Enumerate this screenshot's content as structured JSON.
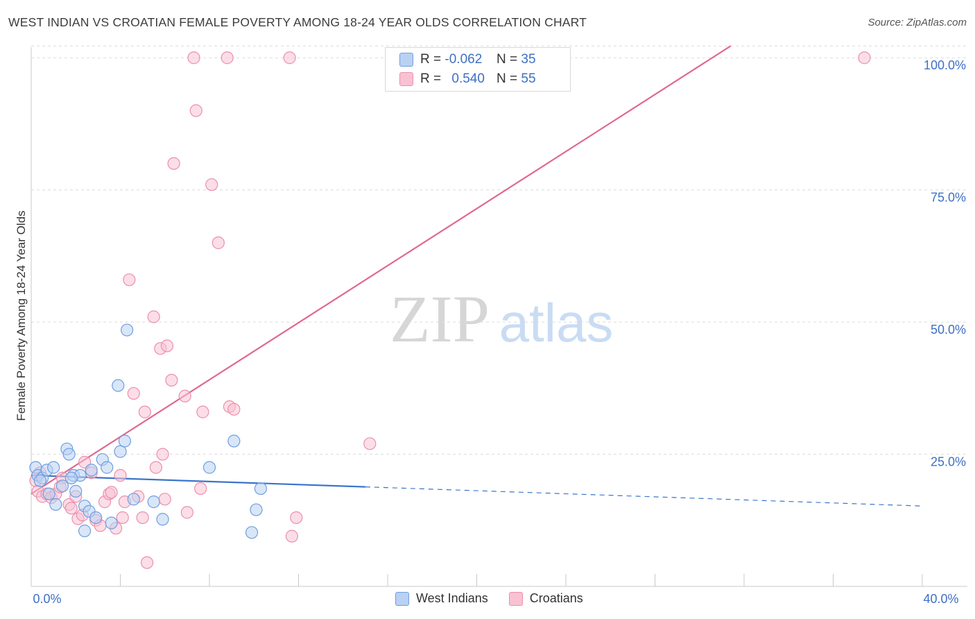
{
  "title": "WEST INDIAN VS CROATIAN FEMALE POVERTY AMONG 18-24 YEAR OLDS CORRELATION CHART",
  "source": "Source: ZipAtlas.com",
  "watermark": {
    "zip": "ZIP",
    "atlas": "atlas"
  },
  "legend": {
    "rows": [
      {
        "r_label": "R =",
        "r_value": "-0.062",
        "n_label": "N =",
        "n_value": "35"
      },
      {
        "r_label": "R =",
        "r_value": "0.540",
        "n_label": "N =",
        "n_value": "55"
      }
    ]
  },
  "colors": {
    "west_fill": "#b9d1f2",
    "west_stroke": "#6e9ee0",
    "west_line": "#3a74cc",
    "cro_fill": "#f8c2d3",
    "cro_stroke": "#ec8fac",
    "cro_line": "#e0688f",
    "axis_text": "#3d6fc4",
    "grid": "#dcdcdc"
  },
  "chart_data": {
    "type": "scatter",
    "title": "WEST INDIAN VS CROATIAN FEMALE POVERTY AMONG 18-24 YEAR OLDS CORRELATION CHART",
    "xlabel": "",
    "ylabel": "Female Poverty Among 18-24 Year Olds",
    "xlim": [
      0,
      40
    ],
    "ylim": [
      0,
      102
    ],
    "x_tick_labels": [
      "0.0%",
      "40.0%"
    ],
    "y_ticks": [
      25,
      50,
      75,
      100
    ],
    "y_tick_labels": [
      "25.0%",
      "50.0%",
      "75.0%",
      "100.0%"
    ],
    "series": [
      {
        "name": "West Indians",
        "r": -0.062,
        "n": 35,
        "trend": {
          "x0": 0,
          "y0": 21.0,
          "x1": 40,
          "y1": 15.2,
          "solid_until_x": 15
        },
        "points": [
          [
            0.2,
            22.5
          ],
          [
            0.3,
            21.0
          ],
          [
            0.5,
            20.5
          ],
          [
            0.7,
            22.0
          ],
          [
            0.8,
            17.5
          ],
          [
            1.0,
            22.5
          ],
          [
            1.1,
            15.5
          ],
          [
            1.4,
            19.0
          ],
          [
            1.6,
            26.0
          ],
          [
            1.7,
            25.0
          ],
          [
            1.9,
            21.0
          ],
          [
            2.0,
            18.0
          ],
          [
            2.2,
            21.0
          ],
          [
            2.4,
            10.5
          ],
          [
            2.4,
            15.2
          ],
          [
            2.6,
            14.2
          ],
          [
            2.7,
            22.0
          ],
          [
            2.9,
            13.0
          ],
          [
            3.2,
            24.0
          ],
          [
            3.4,
            22.5
          ],
          [
            3.6,
            12.0
          ],
          [
            3.9,
            38.0
          ],
          [
            4.0,
            25.5
          ],
          [
            4.2,
            27.5
          ],
          [
            4.3,
            48.5
          ],
          [
            4.6,
            16.5
          ],
          [
            5.5,
            16.0
          ],
          [
            5.9,
            12.7
          ],
          [
            8.0,
            22.5
          ],
          [
            9.1,
            27.5
          ],
          [
            9.9,
            10.2
          ],
          [
            10.1,
            14.5
          ],
          [
            10.3,
            18.5
          ],
          [
            0.4,
            20.0
          ],
          [
            1.8,
            20.5
          ]
        ]
      },
      {
        "name": "Croatians",
        "r": 0.54,
        "n": 55,
        "trend": {
          "x0": 0,
          "y0": 17.5,
          "x1": 31.4,
          "y1": 100
        },
        "points": [
          [
            0.2,
            20.0
          ],
          [
            0.3,
            18.0
          ],
          [
            0.5,
            17.0
          ],
          [
            0.7,
            17.5
          ],
          [
            0.9,
            16.8
          ],
          [
            1.1,
            17.5
          ],
          [
            1.4,
            20.5
          ],
          [
            1.7,
            15.5
          ],
          [
            1.8,
            14.8
          ],
          [
            2.0,
            17.0
          ],
          [
            2.1,
            12.8
          ],
          [
            2.3,
            13.5
          ],
          [
            2.4,
            23.5
          ],
          [
            2.7,
            21.5
          ],
          [
            2.9,
            12.5
          ],
          [
            3.1,
            11.5
          ],
          [
            3.3,
            16.0
          ],
          [
            3.5,
            17.5
          ],
          [
            3.6,
            17.8
          ],
          [
            3.8,
            11.0
          ],
          [
            4.0,
            21.0
          ],
          [
            4.1,
            13.0
          ],
          [
            4.2,
            16.0
          ],
          [
            4.4,
            58.0
          ],
          [
            4.6,
            36.5
          ],
          [
            4.8,
            17.0
          ],
          [
            5.0,
            13.0
          ],
          [
            5.1,
            33.0
          ],
          [
            5.2,
            4.5
          ],
          [
            5.5,
            51.0
          ],
          [
            5.6,
            22.5
          ],
          [
            5.8,
            45.0
          ],
          [
            5.9,
            25.0
          ],
          [
            6.0,
            16.5
          ],
          [
            6.1,
            45.5
          ],
          [
            6.3,
            39.0
          ],
          [
            6.4,
            80.0
          ],
          [
            6.9,
            36.0
          ],
          [
            7.0,
            14.0
          ],
          [
            7.3,
            100.0
          ],
          [
            7.4,
            90.0
          ],
          [
            7.6,
            18.5
          ],
          [
            7.7,
            33.0
          ],
          [
            8.1,
            76.0
          ],
          [
            8.4,
            65.0
          ],
          [
            8.8,
            100.0
          ],
          [
            8.9,
            34.0
          ],
          [
            9.1,
            33.5
          ],
          [
            11.6,
            100.0
          ],
          [
            11.7,
            9.5
          ],
          [
            11.9,
            13.0
          ],
          [
            15.2,
            27.0
          ],
          [
            37.4,
            100.0
          ],
          [
            0.4,
            21.5
          ],
          [
            1.3,
            18.8
          ]
        ]
      }
    ]
  },
  "bottom_legend": {
    "items": [
      {
        "label": "West Indians"
      },
      {
        "label": "Croatians"
      }
    ]
  }
}
